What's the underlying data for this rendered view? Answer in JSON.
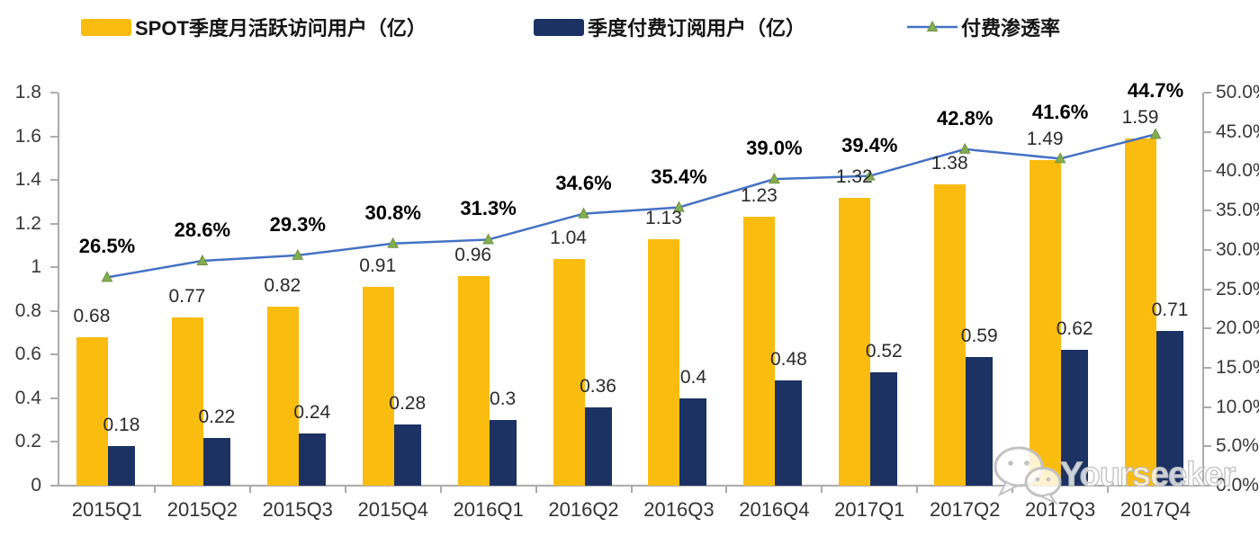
{
  "chart_data": {
    "type": "bar",
    "categories": [
      "2015Q1",
      "2015Q2",
      "2015Q3",
      "2015Q4",
      "2016Q1",
      "2016Q2",
      "2016Q3",
      "2016Q4",
      "2017Q1",
      "2017Q2",
      "2017Q3",
      "2017Q4"
    ],
    "series": [
      {
        "name": "SPOT季度月活跃访问用户（亿）",
        "type": "bar",
        "color": "#FBBC10",
        "values": [
          0.68,
          0.77,
          0.82,
          0.91,
          0.96,
          1.04,
          1.13,
          1.23,
          1.32,
          1.38,
          1.49,
          1.59
        ],
        "labels": [
          "0.68",
          "0.77",
          "0.82",
          "0.91",
          "0.96",
          "1.04",
          "1.13",
          "1.23",
          "1.32",
          "1.38",
          "1.49",
          "1.59"
        ]
      },
      {
        "name": "季度付费订阅用户（亿）",
        "type": "bar",
        "color": "#1B3263",
        "values": [
          0.18,
          0.22,
          0.24,
          0.28,
          0.3,
          0.36,
          0.4,
          0.48,
          0.52,
          0.59,
          0.62,
          0.71
        ],
        "labels": [
          "0.18",
          "0.22",
          "0.24",
          "0.28",
          "0.3",
          "0.36",
          "0.4",
          "0.48",
          "0.52",
          "0.59",
          "0.62",
          "0.71"
        ]
      },
      {
        "name": "付费渗透率",
        "type": "line",
        "color": "#4472C4",
        "marker_color": "#84AD52",
        "marker_stroke": "#6d9440",
        "values": [
          26.5,
          28.6,
          29.3,
          30.8,
          31.3,
          34.6,
          35.4,
          39.0,
          39.4,
          42.8,
          41.6,
          44.7
        ],
        "labels": [
          "26.5%",
          "28.6%",
          "29.3%",
          "30.8%",
          "31.3%",
          "34.6%",
          "35.4%",
          "39.0%",
          "39.4%",
          "42.8%",
          "41.6%",
          "44.7%"
        ]
      }
    ],
    "left_axis": {
      "min": 0,
      "max": 1.8,
      "ticks": [
        "0",
        "0.2",
        "0.4",
        "0.6",
        "0.8",
        "1",
        "1.2",
        "1.4",
        "1.6",
        "1.8"
      ]
    },
    "right_axis": {
      "min": 0,
      "max": 50,
      "ticks": [
        "0.0%",
        "5.0%",
        "10.0%",
        "15.0%",
        "20.0%",
        "25.0%",
        "30.0%",
        "35.0%",
        "40.0%",
        "45.0%",
        "50.0%"
      ]
    },
    "legend_position": "top",
    "grid": false,
    "title": ""
  },
  "watermark": {
    "text": "Yourseeker",
    "icon": "wechat-icon"
  }
}
